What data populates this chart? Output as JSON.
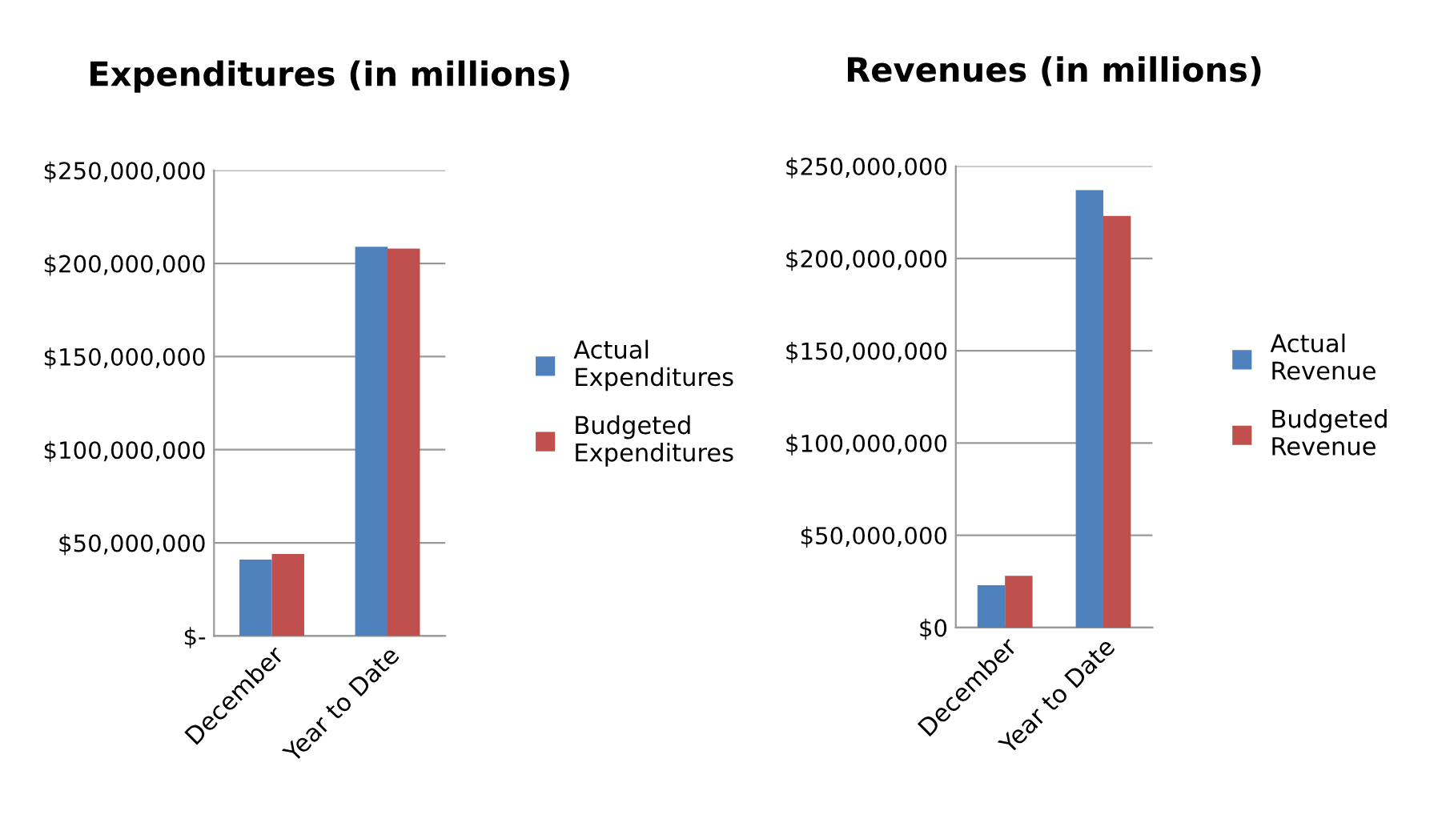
{
  "chart_data": [
    {
      "type": "bar",
      "title": "Expenditures (in millions)",
      "categories": [
        "December",
        "Year to Date"
      ],
      "series": [
        {
          "name": "Actual Expenditures",
          "color": "#4f81bd",
          "values": [
            41000000,
            209000000
          ]
        },
        {
          "name": "Budgeted Expenditures",
          "color": "#c0504d",
          "values": [
            44000000,
            208000000
          ]
        }
      ],
      "ylim": [
        0,
        250000000
      ],
      "yticks": [
        {
          "value": 0,
          "label": "$-"
        },
        {
          "value": 50000000,
          "label": "$50,000,000"
        },
        {
          "value": 100000000,
          "label": "$100,000,000"
        },
        {
          "value": 150000000,
          "label": "$150,000,000"
        },
        {
          "value": 200000000,
          "label": "$200,000,000"
        },
        {
          "value": 250000000,
          "label": "$250,000,000"
        }
      ],
      "grid": "y",
      "legend": "right"
    },
    {
      "type": "bar",
      "title": "Revenues (in millions)",
      "categories": [
        "December",
        "Year to Date"
      ],
      "series": [
        {
          "name": "Actual Revenue",
          "color": "#4f81bd",
          "values": [
            23000000,
            237000000
          ]
        },
        {
          "name": "Budgeted Revenue",
          "color": "#c0504d",
          "values": [
            28000000,
            223000000
          ]
        }
      ],
      "ylim": [
        0,
        250000000
      ],
      "yticks": [
        {
          "value": 0,
          "label": "$0"
        },
        {
          "value": 50000000,
          "label": "$50,000,000"
        },
        {
          "value": 100000000,
          "label": "$100,000,000"
        },
        {
          "value": 150000000,
          "label": "$150,000,000"
        },
        {
          "value": 200000000,
          "label": "$200,000,000"
        },
        {
          "value": 250000000,
          "label": "$250,000,000"
        }
      ],
      "grid": "y",
      "legend": "right"
    }
  ]
}
